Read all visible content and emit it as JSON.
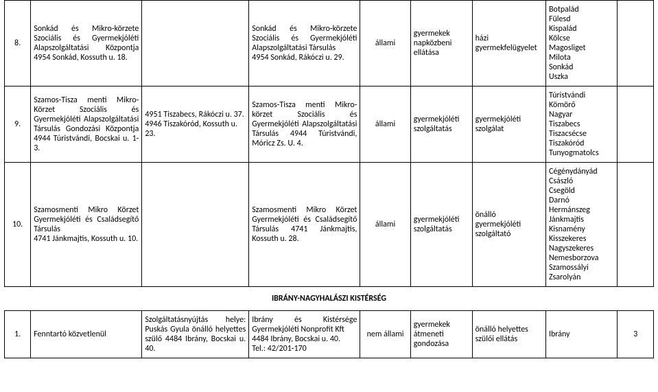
{
  "rows_a": [
    {
      "num": "8.",
      "col1": "Sonkád és Mikro-körzete Szociális és Gyermekjóléti Alapszolgáltatási Központja 4954 Sonkád, Kossuth u. 18.",
      "col2": "",
      "col3": "Sonkád és Mikro-körzete Szociális és Gyermekjóléti Alapszolgáltatási Társulás\n4954 Sonkád, Rákóczi u. 29.",
      "col4": "állami",
      "col5": "gyermekek napközbeni ellátása",
      "col6": "házi gyermekfelügyelet",
      "col7": "Botpalád\nFülesd\nKispalád\nKölcse\nMagosliget\nMilota\nSonkád\nUszka",
      "col8": ""
    },
    {
      "num": "9.",
      "col1": "Szamos-Tisza menti Mikro-Körzet Szociális és Gyermekjóléti Alapszolgáltatási Társulás Gondozási Központja 4944 Túristvándi, Bocskai u. 1-3.",
      "col2": "4951 Tiszabecs, Rákóczi u. 37.\n4946 Tiszakóród, Kossuth u. 23.",
      "col3": "Szamos-Tisza menti Mikro-körzet Szociális és Gyermekjóléti Alapszolgáltatási Társulás 4944 Túristvándi, Móricz Zs. U. 4.",
      "col4": "állami",
      "col5": "gyermekjóléti szolgáltatás",
      "col6": "gyermekjóléti szolgálat",
      "col7": "Túristvándi\nKömörő\nNagyar\nTiszabecs\nTiszacsécse\nTiszakóród\nTunyogmatolcs",
      "col8": ""
    },
    {
      "num": "10.",
      "col1": "Szamosmenti Mikro Körzet Gyermekjóléti és Családsegítő Társulás\n4741 Jánkmajtis, Kossuth u. 10.",
      "col2": "",
      "col3": "Szamosmenti Mikro Körzet Gyermekjóléti és Családsegítő Társulás 4741 Jánkmajtis, Kossuth u. 28.",
      "col4": "állami",
      "col5": "gyermekjóléti szolgáltatás",
      "col6": "önálló gyermekjóléti szolgáltató",
      "col7": "Cégénydányád\nCsászló\nCsegöld\nDarnó\nHermánszeg\nJánkmajtis\nKisnamény\nKisszekeres\nNagyszekeres\nNemesborzova\nSzamossályi\nZsarolyán",
      "col8": ""
    }
  ],
  "section_title": "IBRÁNY-NAGYHALÁSZI KISTÉRSÉG",
  "rows_b": [
    {
      "num": "1.",
      "col1": "Fenntartó közvetlenül",
      "col2": "Szolgáltatásnyújtás helye: Puskás Gyula önálló helyettes szülő 4484 Ibrány, Bocskai u. 40.",
      "col3": "Ibrány és Kistérsége Gyermekjóléti Nonprofit Kft\n4484 Ibrány, Bocskai u. 40.\nTel.: 42/201-170",
      "col4": "nem állami",
      "col5": "gyermekek átmeneti gondozása",
      "col6": "önálló helyettes szülői ellátás",
      "col7": "Ibrány",
      "col8": "3"
    }
  ]
}
